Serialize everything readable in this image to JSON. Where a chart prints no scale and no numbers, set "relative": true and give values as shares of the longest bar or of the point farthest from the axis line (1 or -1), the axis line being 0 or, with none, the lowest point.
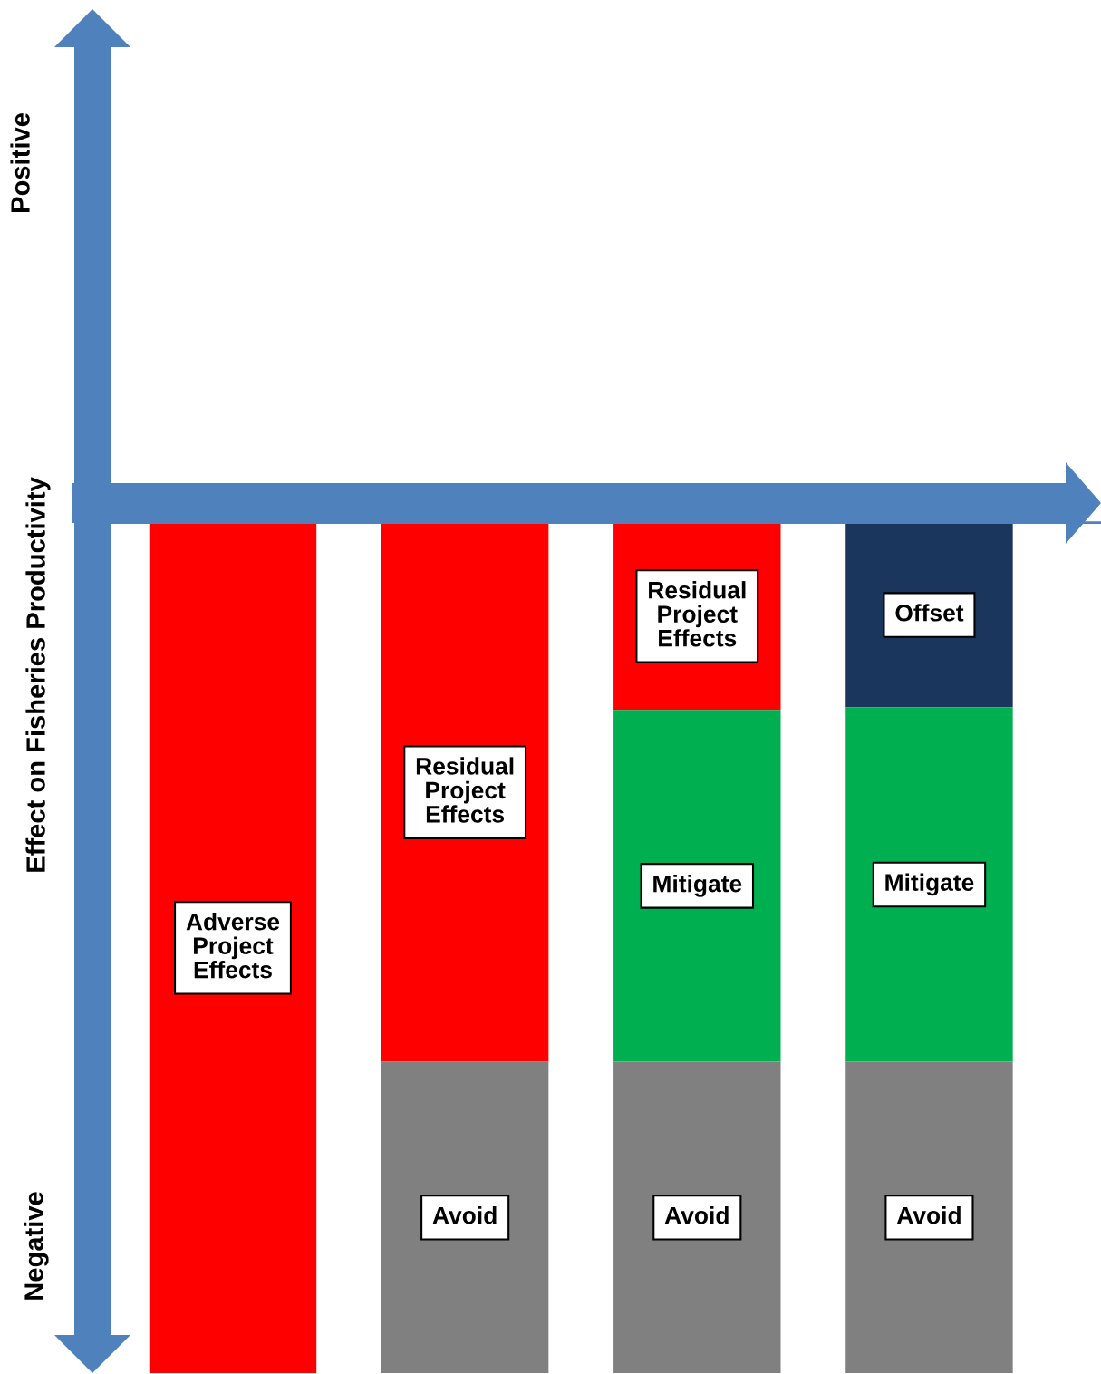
{
  "chart_data": {
    "type": "bar",
    "stacked": true,
    "relative": true,
    "ylabel": "Effect on Fisheries Productivity",
    "annotations": [
      "Positive",
      "Negative"
    ],
    "categories": [
      null,
      null,
      null,
      null
    ],
    "series": [
      {
        "name": "Adverse\nProject\nEffects",
        "color": "#ff0000",
        "values": [
          -1,
          null,
          null,
          null
        ]
      },
      {
        "name": "Residual\nProject\nEffects",
        "color": "#ff0000",
        "values": [
          null,
          -0.634,
          -0.22,
          null
        ]
      },
      {
        "name": "Offset",
        "color": "#1a365d",
        "values": [
          null,
          null,
          null,
          -0.217
        ]
      },
      {
        "name": "Mitigate",
        "color": "#00b050",
        "values": [
          null,
          null,
          -0.414,
          -0.417
        ]
      },
      {
        "name": "Avoid",
        "color": "#808080",
        "values": [
          null,
          -0.366,
          -0.366,
          -0.366
        ]
      }
    ],
    "legend": false,
    "grid": false
  }
}
